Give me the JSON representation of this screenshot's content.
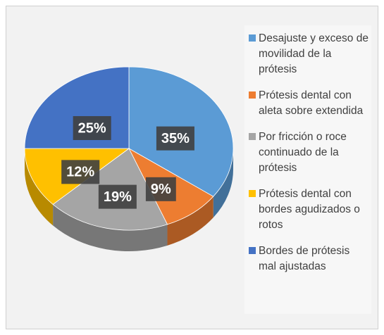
{
  "chart_data": {
    "type": "pie",
    "categories": [
      "Desajuste y exceso de movilidad de la prótesis",
      "Prótesis dental con aleta sobre extendida",
      "Por fricción o roce continuado de la prótesis",
      "Prótesis dental con bordes agudizados o rotos",
      "Bordes de prótesis mal ajustadas"
    ],
    "values": [
      35,
      9,
      19,
      12,
      25
    ],
    "value_labels": [
      "35%",
      "9%",
      "19%",
      "12%",
      "25%"
    ],
    "colors": [
      "#5b9bd5",
      "#ed7d31",
      "#a5a5a5",
      "#ffc000",
      "#4472c4"
    ],
    "legend": "right"
  }
}
